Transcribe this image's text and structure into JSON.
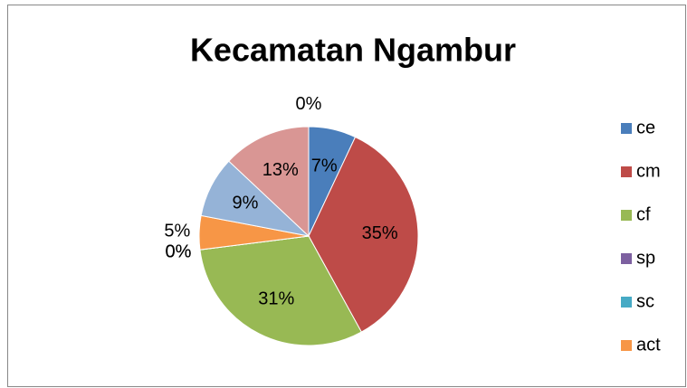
{
  "chart_data": {
    "type": "pie",
    "title": "Kecamatan Ngambur",
    "categories": [
      "ce",
      "cm",
      "cf",
      "sp",
      "sc",
      "act",
      null,
      null,
      null
    ],
    "values": [
      7,
      35,
      31,
      0,
      0,
      5,
      9,
      13,
      0
    ],
    "value_labels": [
      "7%",
      "35%",
      "31%",
      "0%",
      "0%",
      "5%",
      "9%",
      "13%",
      "0%"
    ],
    "colors": [
      "#4a7ebb",
      "#be4b48",
      "#98b954",
      "#7d60a0",
      "#46aac5",
      "#f79646",
      "#95b3d7",
      "#d99694",
      "#b9cde5"
    ],
    "legend": "right"
  }
}
